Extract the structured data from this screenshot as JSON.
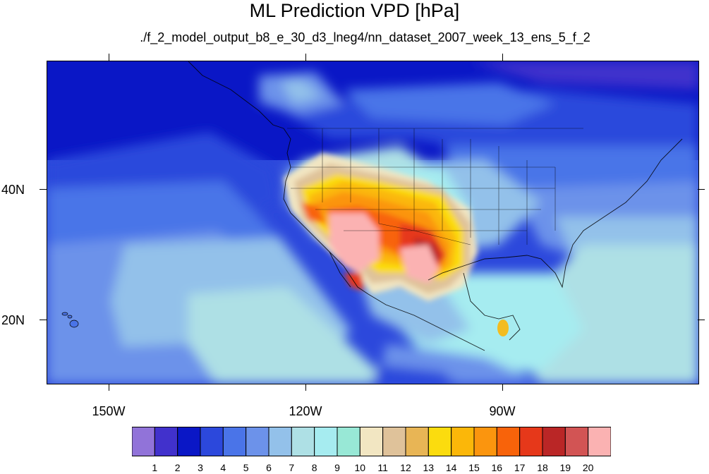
{
  "title": "ML Prediction VPD [hPa]",
  "subtitle": "./f_2_model_output_b8_e_30_d3_lneg4/nn_dataset_2007_week_13_ens_5_f_2",
  "map": {
    "projection": "cylindrical equidistant",
    "lon_range": [
      -160,
      -61
    ],
    "lat_range": [
      11,
      60
    ],
    "lat_labels": [
      "40N",
      "20N"
    ],
    "lon_labels": [
      "150W",
      "120W",
      "90W"
    ]
  },
  "colorbar": {
    "labels": [
      "1",
      "2",
      "3",
      "4",
      "5",
      "6",
      "7",
      "8",
      "9",
      "10",
      "11",
      "12",
      "13",
      "14",
      "15",
      "16",
      "17",
      "18",
      "19",
      "20"
    ],
    "colors": [
      "#9173d9",
      "#4131cc",
      "#0a17c6",
      "#2c48dc",
      "#4a74e8",
      "#6c92ea",
      "#93c1ea",
      "#aee0e5",
      "#a6ecf0",
      "#98e8d6",
      "#f2e6c2",
      "#dfc29a",
      "#e8b555",
      "#fbdc0e",
      "#fbb709",
      "#fb950e",
      "#f8630a",
      "#e6381a",
      "#ba2626",
      "#d25454",
      "#fbb2b2"
    ]
  }
}
